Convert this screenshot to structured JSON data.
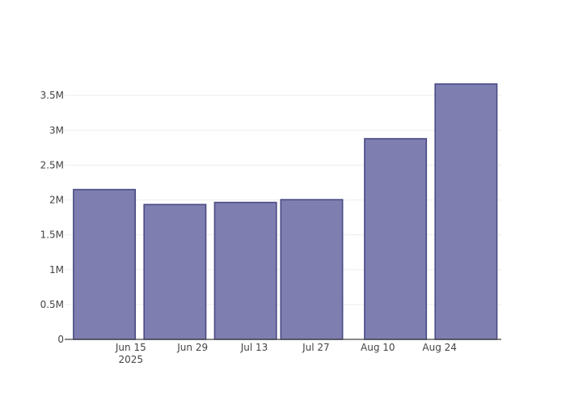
{
  "chart_data": {
    "type": "bar",
    "title": "",
    "xlabel": "",
    "ylabel": "",
    "x_axis_type": "date",
    "bars": [
      {
        "start": "2025-06-02",
        "end": "2025-06-16",
        "value": 2150000
      },
      {
        "start": "2025-06-18",
        "end": "2025-07-02",
        "value": 1935000
      },
      {
        "start": "2025-07-04",
        "end": "2025-07-18",
        "value": 1965000
      },
      {
        "start": "2025-07-19",
        "end": "2025-08-02",
        "value": 2005000
      },
      {
        "start": "2025-08-07",
        "end": "2025-08-21",
        "value": 2880000
      },
      {
        "start": "2025-08-23",
        "end": "2025-09-06",
        "value": 3665000
      }
    ],
    "ylim": [
      0,
      3850000
    ],
    "yticks": [
      0,
      500000,
      1000000,
      1500000,
      2000000,
      2500000,
      3000000,
      3500000
    ],
    "ytick_labels": [
      "0",
      "0.5M",
      "1M",
      "1.5M",
      "2M",
      "2.5M",
      "3M",
      "3.5M"
    ],
    "xlim": [
      "2025-05-31",
      "2025-09-07"
    ],
    "xticks": [
      "2025-06-15",
      "2025-06-29",
      "2025-07-13",
      "2025-07-27",
      "2025-08-10",
      "2025-08-24"
    ],
    "xtick_labels": [
      "Jun 15",
      "Jun 29",
      "Jul 13",
      "Jul 27",
      "Aug 10",
      "Aug 24"
    ],
    "xtick_year_label": "2025",
    "grid": true,
    "legend": "none",
    "bar_fill": "#7e7eb0",
    "bar_stroke": "#4a4a85",
    "grid_color": "#eeeeee",
    "axis_color": "#444444"
  }
}
